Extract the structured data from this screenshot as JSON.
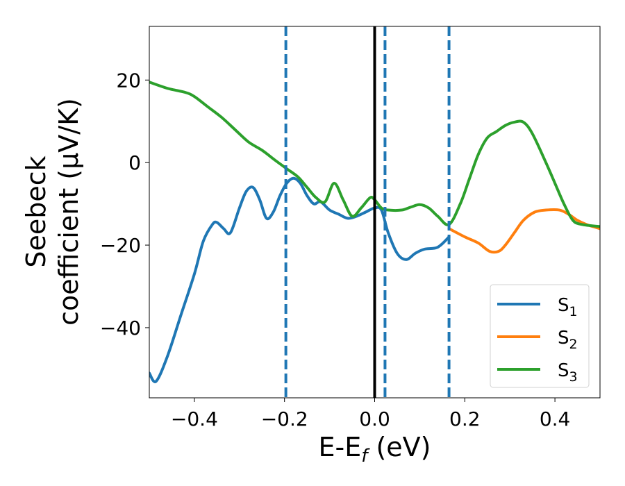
{
  "chart_data": {
    "type": "line",
    "xlabel": {
      "main": "E-E",
      "sub": "f",
      "tail": " (eV)"
    },
    "ylabel": {
      "line1": "Seebeck",
      "line2": "coefficient  (μV/K)"
    },
    "xlim": [
      -0.5,
      0.5
    ],
    "ylim": [
      -57,
      33
    ],
    "xticks": [
      -0.4,
      -0.2,
      0.0,
      0.2,
      0.4
    ],
    "xtick_labels": [
      "−0.4",
      "−0.2",
      "0.0",
      "0.2",
      "0.4"
    ],
    "yticks": [
      20,
      0,
      -20,
      -40
    ],
    "ytick_labels": [
      "20",
      "0",
      "−20",
      "−40"
    ],
    "grid": false,
    "legend_position": "bottom-right",
    "vertical_lines": [
      {
        "x": 0.0,
        "style": "solid",
        "color": "#000000"
      },
      {
        "x": -0.197,
        "style": "dashed",
        "color": "#1f77b4"
      },
      {
        "x": 0.023,
        "style": "dashed",
        "color": "#1f77b4"
      },
      {
        "x": 0.165,
        "style": "dashed",
        "color": "#1f77b4"
      }
    ],
    "series": [
      {
        "name": "S",
        "sub": "1",
        "color": "#1f77b4",
        "x": [
          -0.5,
          -0.485,
          -0.46,
          -0.43,
          -0.4,
          -0.38,
          -0.36,
          -0.35,
          -0.335,
          -0.32,
          -0.3,
          -0.285,
          -0.27,
          -0.255,
          -0.24,
          -0.225,
          -0.21,
          -0.195,
          -0.18,
          -0.165,
          -0.15,
          -0.135,
          -0.12,
          -0.1,
          -0.08,
          -0.06,
          -0.04,
          -0.02,
          0.0,
          0.015,
          0.03,
          0.05,
          0.07,
          0.09,
          0.11,
          0.14,
          0.165
        ],
        "y": [
          -51,
          -53,
          -47,
          -37,
          -27,
          -19,
          -15,
          -14.5,
          -16,
          -17,
          -11,
          -7,
          -6,
          -9,
          -13.5,
          -12,
          -8,
          -5,
          -3.8,
          -5,
          -8,
          -10,
          -9.5,
          -11.5,
          -12.5,
          -13.5,
          -13,
          -12,
          -11,
          -11.5,
          -17,
          -22,
          -23.5,
          -22,
          -21,
          -20.5,
          -18
        ]
      },
      {
        "name": "S",
        "sub": "2",
        "color": "#ff7f0e",
        "x": [
          0.165,
          0.2,
          0.23,
          0.255,
          0.275,
          0.29,
          0.31,
          0.33,
          0.355,
          0.38,
          0.41,
          0.43,
          0.45,
          0.47,
          0.5
        ],
        "y": [
          -16,
          -18,
          -19.5,
          -21.5,
          -21.5,
          -20,
          -17,
          -14,
          -12,
          -11.5,
          -11.5,
          -12.5,
          -14,
          -15,
          -16
        ]
      },
      {
        "name": "S",
        "sub": "3",
        "color": "#2ca02c",
        "x": [
          -0.5,
          -0.46,
          -0.42,
          -0.4,
          -0.37,
          -0.34,
          -0.31,
          -0.28,
          -0.25,
          -0.22,
          -0.195,
          -0.17,
          -0.15,
          -0.13,
          -0.11,
          -0.09,
          -0.07,
          -0.05,
          -0.03,
          -0.01,
          0.0,
          0.015,
          0.03,
          0.06,
          0.08,
          0.1,
          0.12,
          0.14,
          0.165,
          0.19,
          0.21,
          0.23,
          0.25,
          0.27,
          0.29,
          0.31,
          0.33,
          0.35,
          0.38,
          0.4,
          0.42,
          0.44,
          0.46,
          0.5
        ],
        "y": [
          19.5,
          18,
          17,
          16,
          13.5,
          11,
          8,
          5,
          3,
          0.5,
          -1.5,
          -3.5,
          -6,
          -8.5,
          -9.5,
          -5,
          -9,
          -13,
          -11,
          -8.5,
          -9,
          -11,
          -11.5,
          -11.5,
          -10.8,
          -10.2,
          -11,
          -13,
          -15,
          -10,
          -4,
          2,
          6,
          7.5,
          9,
          9.8,
          9.8,
          7,
          0,
          -5,
          -10,
          -14,
          -15,
          -15.5
        ]
      }
    ]
  }
}
